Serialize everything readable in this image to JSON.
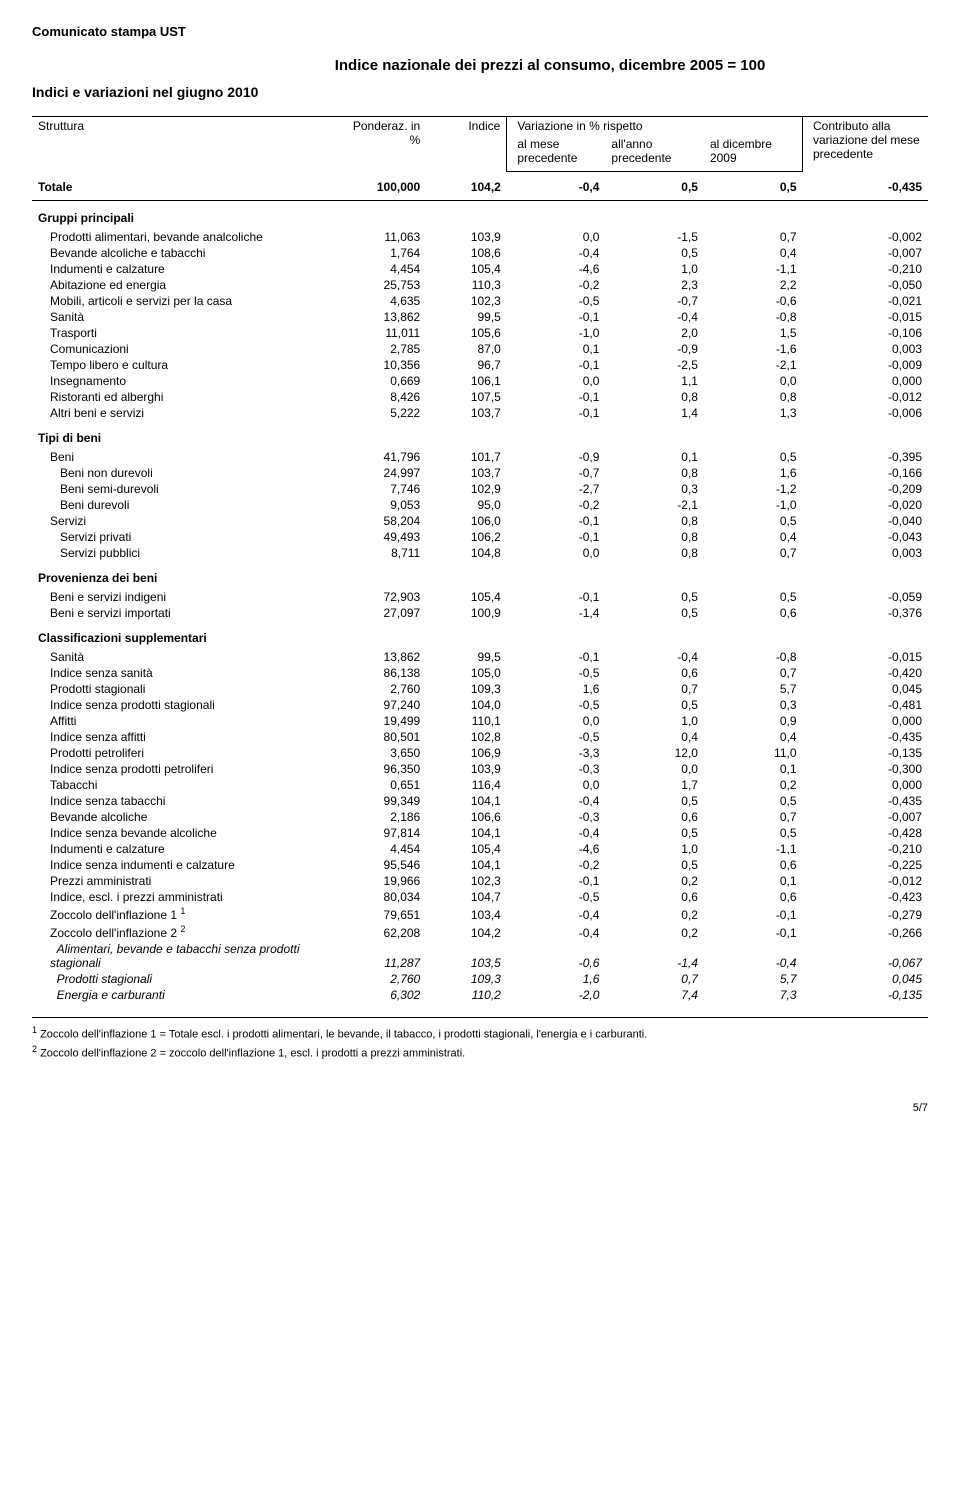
{
  "doc_header": "Comunicato stampa UST",
  "title": "Indice nazionale dei prezzi al consumo, dicembre 2005 = 100",
  "subtitle": "Indici e variazioni nel giugno 2010",
  "columns": {
    "struttura": "Struttura",
    "ponderaz": "Ponderaz. in %",
    "indice": "Indice",
    "variazione_group": "Variazione in % rispetto",
    "al_mese": "al mese precedente",
    "all_anno": "all'anno precedente",
    "al_dicembre": "al dicembre 2009",
    "contributo": "Contributo alla variazione del mese precedente"
  },
  "totale": {
    "label": "Totale",
    "ponderaz": "100,000",
    "indice": "104,2",
    "v1": "-0,4",
    "v2": "0,5",
    "v3": "0,5",
    "contrib": "-0,435"
  },
  "sections": {
    "gruppi": "Gruppi principali",
    "tipi": "Tipi di beni",
    "provenienza": "Provenienza dei beni",
    "classificazioni": "Classificazioni supplementari"
  },
  "gruppi": [
    {
      "label": "Prodotti alimentari, bevande analcoliche",
      "ponderaz": "11,063",
      "indice": "103,9",
      "v1": "0,0",
      "v2": "-1,5",
      "v3": "0,7",
      "contrib": "-0,002"
    },
    {
      "label": "Bevande alcoliche e tabacchi",
      "ponderaz": "1,764",
      "indice": "108,6",
      "v1": "-0,4",
      "v2": "0,5",
      "v3": "0,4",
      "contrib": "-0,007"
    },
    {
      "label": "Indumenti e calzature",
      "ponderaz": "4,454",
      "indice": "105,4",
      "v1": "-4,6",
      "v2": "1,0",
      "v3": "-1,1",
      "contrib": "-0,210"
    },
    {
      "label": "Abitazione ed energia",
      "ponderaz": "25,753",
      "indice": "110,3",
      "v1": "-0,2",
      "v2": "2,3",
      "v3": "2,2",
      "contrib": "-0,050"
    },
    {
      "label": "Mobili, articoli e servizi per la casa",
      "ponderaz": "4,635",
      "indice": "102,3",
      "v1": "-0,5",
      "v2": "-0,7",
      "v3": "-0,6",
      "contrib": "-0,021"
    },
    {
      "label": "Sanità",
      "ponderaz": "13,862",
      "indice": "99,5",
      "v1": "-0,1",
      "v2": "-0,4",
      "v3": "-0,8",
      "contrib": "-0,015"
    },
    {
      "label": "Trasporti",
      "ponderaz": "11,011",
      "indice": "105,6",
      "v1": "-1,0",
      "v2": "2,0",
      "v3": "1,5",
      "contrib": "-0,106"
    },
    {
      "label": "Comunicazioni",
      "ponderaz": "2,785",
      "indice": "87,0",
      "v1": "0,1",
      "v2": "-0,9",
      "v3": "-1,6",
      "contrib": "0,003"
    },
    {
      "label": "Tempo libero e cultura",
      "ponderaz": "10,356",
      "indice": "96,7",
      "v1": "-0,1",
      "v2": "-2,5",
      "v3": "-2,1",
      "contrib": "-0,009"
    },
    {
      "label": "Insegnamento",
      "ponderaz": "0,669",
      "indice": "106,1",
      "v1": "0,0",
      "v2": "1,1",
      "v3": "0,0",
      "contrib": "0,000"
    },
    {
      "label": "Ristoranti ed alberghi",
      "ponderaz": "8,426",
      "indice": "107,5",
      "v1": "-0,1",
      "v2": "0,8",
      "v3": "0,8",
      "contrib": "-0,012"
    },
    {
      "label": "Altri beni e servizi",
      "ponderaz": "5,222",
      "indice": "103,7",
      "v1": "-0,1",
      "v2": "1,4",
      "v3": "1,3",
      "contrib": "-0,006"
    }
  ],
  "tipi_beni": {
    "label": "Beni",
    "ponderaz": "41,796",
    "indice": "101,7",
    "v1": "-0,9",
    "v2": "0,1",
    "v3": "0,5",
    "contrib": "-0,395"
  },
  "tipi_beni_sub": [
    {
      "label": "Beni non durevoli",
      "ponderaz": "24,997",
      "indice": "103,7",
      "v1": "-0,7",
      "v2": "0,8",
      "v3": "1,6",
      "contrib": "-0,166"
    },
    {
      "label": "Beni semi-durevoli",
      "ponderaz": "7,746",
      "indice": "102,9",
      "v1": "-2,7",
      "v2": "0,3",
      "v3": "-1,2",
      "contrib": "-0,209"
    },
    {
      "label": "Beni durevoli",
      "ponderaz": "9,053",
      "indice": "95,0",
      "v1": "-0,2",
      "v2": "-2,1",
      "v3": "-1,0",
      "contrib": "-0,020"
    }
  ],
  "tipi_servizi": {
    "label": "Servizi",
    "ponderaz": "58,204",
    "indice": "106,0",
    "v1": "-0,1",
    "v2": "0,8",
    "v3": "0,5",
    "contrib": "-0,040"
  },
  "tipi_servizi_sub": [
    {
      "label": "Servizi privati",
      "ponderaz": "49,493",
      "indice": "106,2",
      "v1": "-0,1",
      "v2": "0,8",
      "v3": "0,4",
      "contrib": "-0,043"
    },
    {
      "label": "Servizi pubblici",
      "ponderaz": "8,711",
      "indice": "104,8",
      "v1": "0,0",
      "v2": "0,8",
      "v3": "0,7",
      "contrib": "0,003"
    }
  ],
  "provenienza": [
    {
      "label": "Beni e servizi indigeni",
      "ponderaz": "72,903",
      "indice": "105,4",
      "v1": "-0,1",
      "v2": "0,5",
      "v3": "0,5",
      "contrib": "-0,059"
    },
    {
      "label": "Beni e servizi importati",
      "ponderaz": "27,097",
      "indice": "100,9",
      "v1": "-1,4",
      "v2": "0,5",
      "v3": "0,6",
      "contrib": "-0,376"
    }
  ],
  "classificazioni": [
    [
      {
        "label": "Sanità",
        "ponderaz": "13,862",
        "indice": "99,5",
        "v1": "-0,1",
        "v2": "-0,4",
        "v3": "-0,8",
        "contrib": "-0,015"
      },
      {
        "label": "Indice senza sanità",
        "ponderaz": "86,138",
        "indice": "105,0",
        "v1": "-0,5",
        "v2": "0,6",
        "v3": "0,7",
        "contrib": "-0,420"
      }
    ],
    [
      {
        "label": "Prodotti stagionali",
        "ponderaz": "2,760",
        "indice": "109,3",
        "v1": "1,6",
        "v2": "0,7",
        "v3": "5,7",
        "contrib": "0,045"
      },
      {
        "label": "Indice senza prodotti stagionali",
        "ponderaz": "97,240",
        "indice": "104,0",
        "v1": "-0,5",
        "v2": "0,5",
        "v3": "0,3",
        "contrib": "-0,481"
      }
    ],
    [
      {
        "label": "Affitti",
        "ponderaz": "19,499",
        "indice": "110,1",
        "v1": "0,0",
        "v2": "1,0",
        "v3": "0,9",
        "contrib": "0,000"
      },
      {
        "label": "Indice senza affitti",
        "ponderaz": "80,501",
        "indice": "102,8",
        "v1": "-0,5",
        "v2": "0,4",
        "v3": "0,4",
        "contrib": "-0,435"
      }
    ],
    [
      {
        "label": "Prodotti petroliferi",
        "ponderaz": "3,650",
        "indice": "106,9",
        "v1": "-3,3",
        "v2": "12,0",
        "v3": "11,0",
        "contrib": "-0,135"
      },
      {
        "label": "Indice senza prodotti petroliferi",
        "ponderaz": "96,350",
        "indice": "103,9",
        "v1": "-0,3",
        "v2": "0,0",
        "v3": "0,1",
        "contrib": "-0,300"
      }
    ],
    [
      {
        "label": "Tabacchi",
        "ponderaz": "0,651",
        "indice": "116,4",
        "v1": "0,0",
        "v2": "1,7",
        "v3": "0,2",
        "contrib": "0,000"
      },
      {
        "label": "Indice senza tabacchi",
        "ponderaz": "99,349",
        "indice": "104,1",
        "v1": "-0,4",
        "v2": "0,5",
        "v3": "0,5",
        "contrib": "-0,435"
      }
    ],
    [
      {
        "label": "Bevande alcoliche",
        "ponderaz": "2,186",
        "indice": "106,6",
        "v1": "-0,3",
        "v2": "0,6",
        "v3": "0,7",
        "contrib": "-0,007"
      },
      {
        "label": "Indice senza bevande alcoliche",
        "ponderaz": "97,814",
        "indice": "104,1",
        "v1": "-0,4",
        "v2": "0,5",
        "v3": "0,5",
        "contrib": "-0,428"
      }
    ],
    [
      {
        "label": "Indumenti e calzature",
        "ponderaz": "4,454",
        "indice": "105,4",
        "v1": "-4,6",
        "v2": "1,0",
        "v3": "-1,1",
        "contrib": "-0,210"
      },
      {
        "label": "Indice senza indumenti e calzature",
        "ponderaz": "95,546",
        "indice": "104,1",
        "v1": "-0,2",
        "v2": "0,5",
        "v3": "0,6",
        "contrib": "-0,225"
      }
    ],
    [
      {
        "label": "Prezzi amministrati",
        "ponderaz": "19,966",
        "indice": "102,3",
        "v1": "-0,1",
        "v2": "0,2",
        "v3": "0,1",
        "contrib": "-0,012"
      },
      {
        "label": "Indice, escl. i prezzi amministrati",
        "ponderaz": "80,034",
        "indice": "104,7",
        "v1": "-0,5",
        "v2": "0,6",
        "v3": "0,6",
        "contrib": "-0,423"
      }
    ]
  ],
  "zoccolo1": {
    "label_html": "Zoccolo dell'inflazione 1 <sup>1</sup>",
    "ponderaz": "79,651",
    "indice": "103,4",
    "v1": "-0,4",
    "v2": "0,2",
    "v3": "-0,1",
    "contrib": "-0,279"
  },
  "zoccolo2": {
    "label_html": "Zoccolo dell'inflazione 2 <sup>2</sup>",
    "ponderaz": "62,208",
    "indice": "104,2",
    "v1": "-0,4",
    "v2": "0,2",
    "v3": "-0,1",
    "contrib": "-0,266"
  },
  "zoccolo2_sub": [
    {
      "label": "Alimentari, bevande e tabacchi senza prodotti stagionali",
      "ponderaz": "11,287",
      "indice": "103,5",
      "v1": "-0,6",
      "v2": "-1,4",
      "v3": "-0,4",
      "contrib": "-0,067"
    },
    {
      "label": "Prodotti stagionali",
      "ponderaz": "2,760",
      "indice": "109,3",
      "v1": "1,6",
      "v2": "0,7",
      "v3": "5,7",
      "contrib": "0,045"
    },
    {
      "label": "Energia e carburanti",
      "ponderaz": "6,302",
      "indice": "110,2",
      "v1": "-2,0",
      "v2": "7,4",
      "v3": "7,3",
      "contrib": "-0,135"
    }
  ],
  "footnote1_html": "<sup>1</sup> Zoccolo dell'inflazione 1 = Totale escl. i prodotti alimentari, le bevande, il tabacco, i prodotti stagionali, l'energia e i carburanti.",
  "footnote2_html": "<sup>2</sup> Zoccolo dell'inflazione 2 = zoccolo dell'inflazione 1, escl. i prodotti a prezzi amministrati.",
  "page_number": "5/7"
}
